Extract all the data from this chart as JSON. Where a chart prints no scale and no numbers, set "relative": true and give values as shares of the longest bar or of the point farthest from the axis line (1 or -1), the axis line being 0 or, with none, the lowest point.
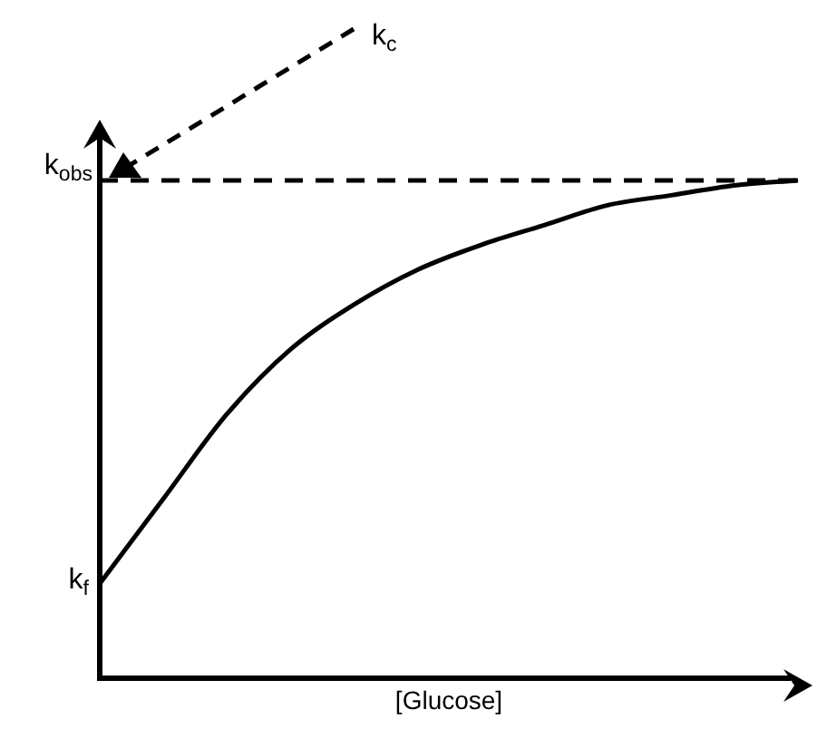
{
  "chart_data": {
    "type": "line",
    "relative": true,
    "xlabel": "[Glucose]",
    "color": "#000000",
    "marker": "none",
    "legend": false,
    "categories": [
      null,
      null,
      null,
      null,
      null,
      null,
      null,
      null,
      null,
      null,
      null,
      null
    ],
    "values": [
      0.19,
      0.36,
      0.53,
      0.66,
      0.75,
      0.82,
      0.87,
      0.91,
      0.95,
      0.97,
      0.99,
      1.0
    ],
    "ref_lines": [
      {
        "axis": "y",
        "value": 1.0,
        "label": "k$_{obs}$",
        "line_style": "dashed",
        "color": "#000000"
      }
    ],
    "annotations": [
      "k$_{f}$",
      "k$_{c}$"
    ]
  }
}
